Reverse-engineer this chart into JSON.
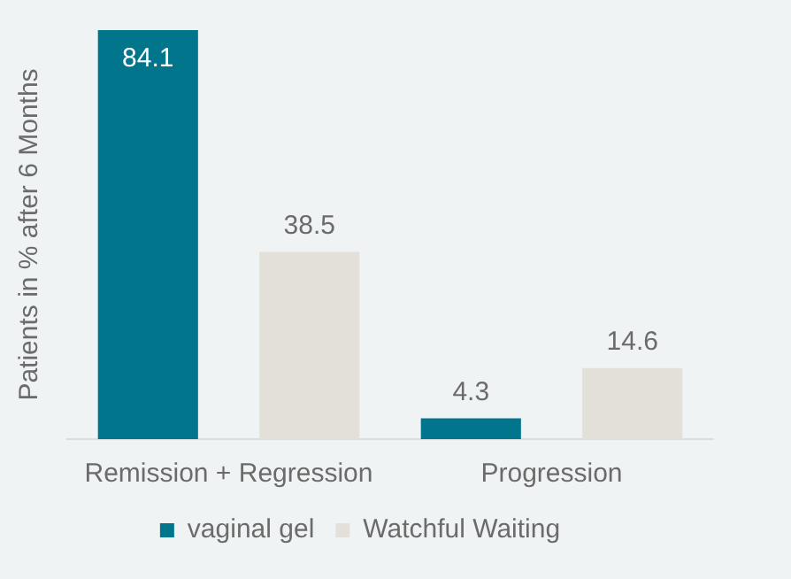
{
  "chart_data": {
    "type": "bar",
    "ylabel": "Patients in % after 6 Months",
    "categories": [
      "Remission + Regression",
      "Progression"
    ],
    "series": [
      {
        "name": "vaginal gel",
        "color": "#00758c",
        "values": [
          84.1,
          4.3
        ]
      },
      {
        "name": "Watchful Waiting",
        "color": "#e3e0d9",
        "values": [
          38.5,
          14.6
        ]
      }
    ],
    "data_labels": true,
    "legend": "bottom",
    "grid": false
  }
}
